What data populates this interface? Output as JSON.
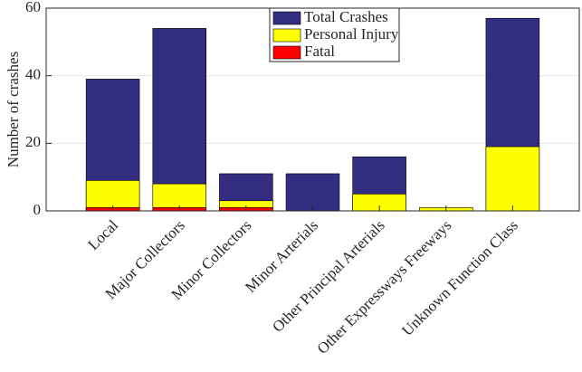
{
  "chart_data": {
    "type": "bar",
    "y_label": "Number of crashes",
    "categories": [
      "Local",
      "Major Collectors",
      "Minor Collectors",
      "Minor Arterials",
      "Other Principal Arterials",
      "Other Expressways Freeways",
      "Unknown Function Class"
    ],
    "series": [
      {
        "name": "Total Crashes",
        "color": "#332e82",
        "values": [
          39,
          54,
          11,
          11,
          16,
          1,
          57
        ]
      },
      {
        "name": "Personal Injury",
        "color": "#ffff00",
        "values": [
          9,
          8,
          3,
          0,
          5,
          1,
          19
        ]
      },
      {
        "name": "Fatal",
        "color": "#ff0000",
        "values": [
          1,
          1,
          1,
          0,
          0,
          0,
          0
        ]
      }
    ],
    "ylim": [
      0,
      60
    ],
    "yticks": [
      0,
      20,
      40,
      60
    ],
    "grid": true,
    "legend_position": "top"
  }
}
